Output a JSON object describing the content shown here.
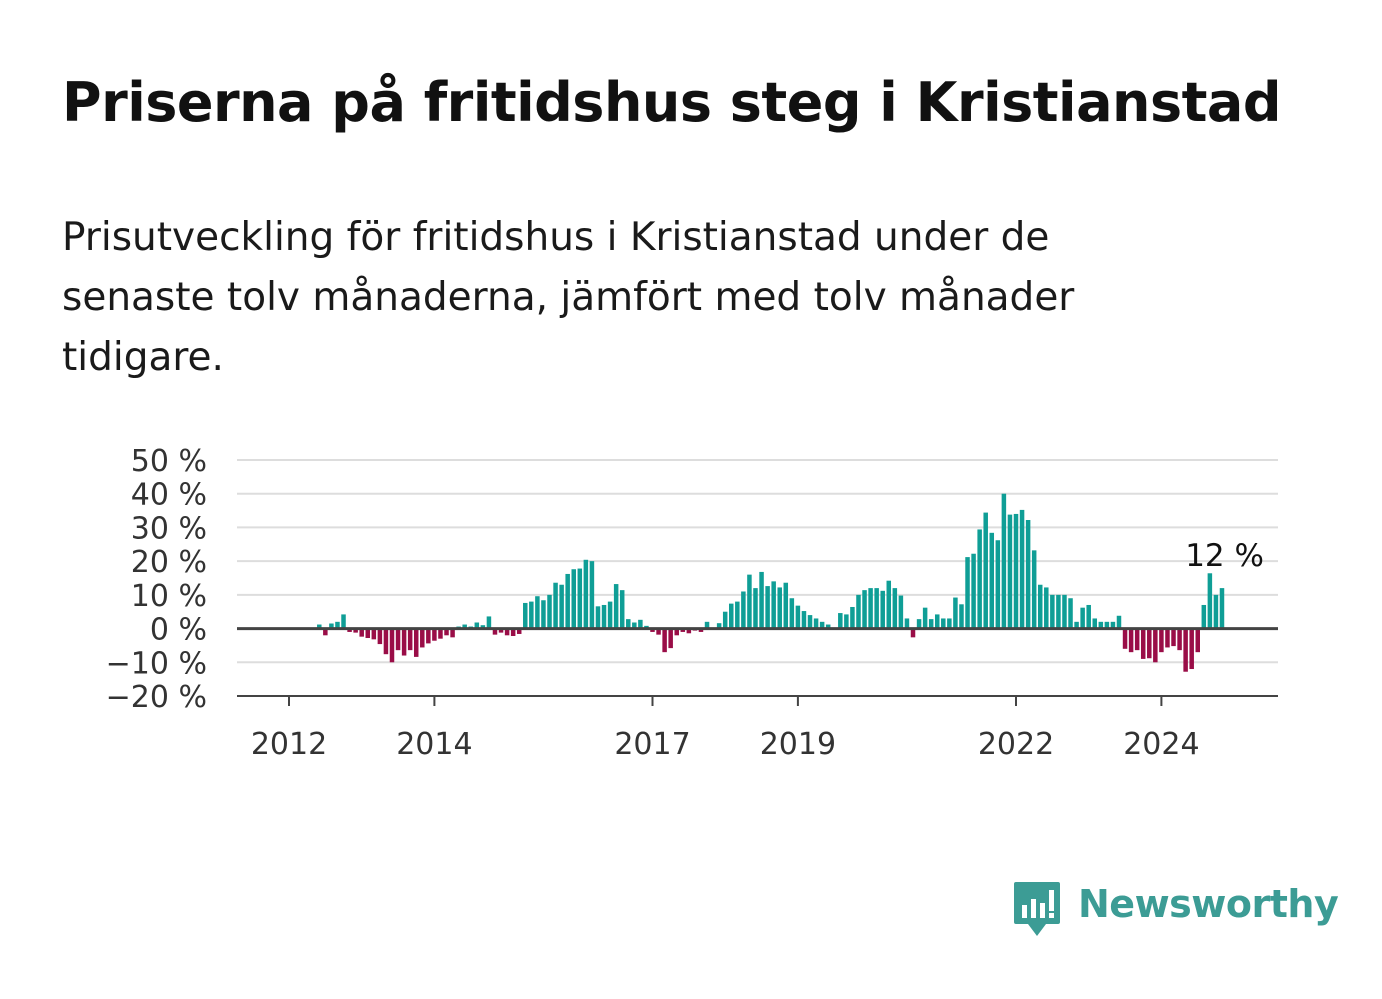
{
  "title": "Priserna på fritidshus steg i Kristianstad",
  "subtitle": "Prisutveckling för fritidshus i Kristianstad under de senaste tolv månaderna, jämfört med tolv månader tidigare.",
  "brand": {
    "name": "Newsworthy",
    "logo_icon": "bar-chart-speech-bubble-icon",
    "color": "#3c9c95"
  },
  "colors": {
    "positive": "#0f9e96",
    "negative": "#9a0d47",
    "grid": "#dddddd",
    "axis": "#444444"
  },
  "chart_data": {
    "type": "bar",
    "ylim": [
      -20,
      50
    ],
    "y_ticks": [
      50,
      40,
      30,
      20,
      10,
      0,
      -10,
      -20
    ],
    "y_tick_labels": [
      "50 %",
      "40 %",
      "30 %",
      "20 %",
      "10 %",
      "0 %",
      "−10 %",
      "−20 %"
    ],
    "x_ticks": [
      "2012",
      "2014",
      "2017",
      "2019",
      "2022",
      "2024"
    ],
    "grid": true,
    "end_label": "12 %",
    "series": [
      {
        "first_month": "2012-06",
        "values": [
          1.2,
          -2.0,
          1.5,
          2.0,
          4.2,
          -1.0,
          -1.2,
          -2.4,
          -2.8,
          -3.2,
          -4.6,
          -7.6,
          -10.0,
          -6.4,
          -8.0,
          -6.4,
          -8.4,
          -5.6,
          -4.4,
          -3.6,
          -3.0,
          -2.0,
          -2.6,
          0.6,
          1.2,
          0.6,
          1.8,
          1.0,
          3.6,
          -1.8,
          -1.2,
          -2.0,
          -2.2,
          -1.6,
          7.6,
          8.0,
          9.6,
          8.4,
          10.0,
          13.6,
          13.0,
          16.2,
          17.6,
          17.8,
          20.4,
          20.0,
          6.6,
          7.0,
          8.0,
          13.2,
          11.4,
          2.8,
          1.8,
          2.6,
          0.8,
          -1.0,
          -1.8,
          -7.0,
          -5.8,
          -2.0,
          -1.0,
          -1.4,
          -0.6,
          -1.0,
          2.0,
          0.0,
          1.6,
          5.0,
          7.4,
          8.0,
          11.0,
          16.0,
          12.0,
          16.8,
          12.6,
          14.0,
          12.2,
          13.6,
          9.0,
          6.8,
          5.2,
          4.0,
          3.0,
          2.0,
          1.2,
          0.0,
          4.6,
          4.2,
          6.4,
          10.0,
          11.4,
          12.0,
          12.0,
          11.2,
          14.2,
          12.0,
          9.8,
          3.0,
          -2.6,
          2.8,
          6.2,
          2.8,
          4.2,
          3.0,
          3.0,
          9.2,
          7.2,
          21.2,
          22.2,
          29.4,
          34.4,
          28.4,
          26.2,
          40.0,
          33.8,
          34.0,
          35.2,
          32.2,
          23.2,
          13.0,
          12.2,
          10.0,
          10.0,
          10.0,
          9.0,
          2.0,
          6.2,
          7.0,
          3.0,
          2.0,
          2.0,
          2.0,
          3.8,
          -6.0,
          -7.0,
          -6.4,
          -9.0,
          -8.8,
          -10.0,
          -7.0,
          -5.6,
          -5.2,
          -6.4,
          -12.8,
          -12.0,
          -7.0,
          7.0,
          16.4,
          10.0,
          12.0
        ]
      }
    ]
  }
}
